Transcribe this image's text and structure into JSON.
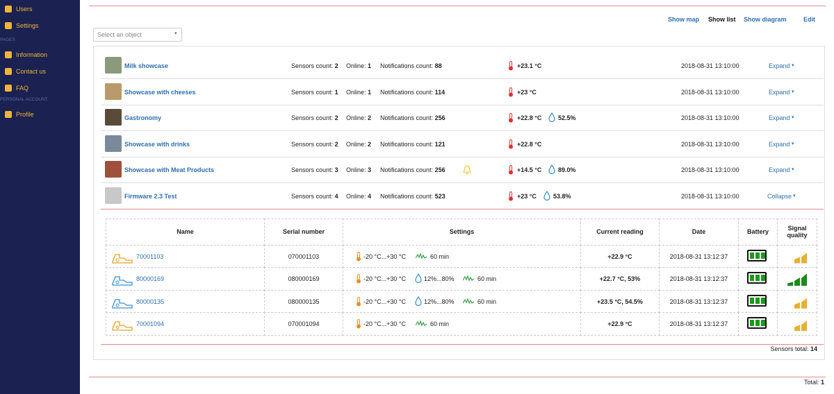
{
  "sidebar": {
    "top": [
      "Users",
      "Settings"
    ],
    "sections": [
      {
        "title": "PAGES",
        "items": [
          "Information",
          "Contact us",
          "FAQ"
        ]
      },
      {
        "title": "PERSONAL ACCOUNT",
        "items": [
          "Profile"
        ]
      }
    ]
  },
  "toolbar": {
    "links": [
      "Show map",
      "Show list",
      "Show diagram",
      "Edit"
    ],
    "active": 1
  },
  "select_placeholder": "Select an object",
  "objects": {
    "labels": {
      "sensors": "Sensors count:",
      "online": "Online:",
      "notifications": "Notifications count:"
    },
    "rows": [
      {
        "name": "Milk showcase",
        "sensors": 2,
        "online": 1,
        "notifications": 88,
        "temperature": "+23.1 °C",
        "datetime": "2018-08-31 13:10:00",
        "toggle": "Expand"
      },
      {
        "name": "Showcase with cheeses",
        "sensors": 1,
        "online": 1,
        "notifications": 114,
        "temperature": "+23 °C",
        "datetime": "2018-08-31 13:10:00",
        "toggle": "Expand"
      },
      {
        "name": "Gastronomy",
        "sensors": 2,
        "online": 2,
        "notifications": 256,
        "temperature": "+22.8 °C",
        "humidity": "52.5%",
        "datetime": "2018-08-31 13:10:00",
        "toggle": "Expand"
      },
      {
        "name": "Showcase with drinks",
        "sensors": 2,
        "online": 2,
        "notifications": 121,
        "temperature": "+22.8 °C",
        "datetime": "2018-08-31 13:10:00",
        "toggle": "Expand"
      },
      {
        "name": "Showcase with Meat Products",
        "sensors": 3,
        "online": 3,
        "notifications": 256,
        "alert": true,
        "temperature": "+14.5 °C",
        "humidity": "89.0%",
        "datetime": "2018-08-31 13:10:00",
        "toggle": "Expand"
      },
      {
        "name": "Firmware 2.3 Test",
        "sensors": 4,
        "online": 4,
        "notifications": 523,
        "temperature": "+23 °C",
        "humidity": "53.8%",
        "datetime": "2018-08-31 13:10:00",
        "toggle": "Collapse"
      }
    ]
  },
  "sensors_table": {
    "headers": [
      "Name",
      "Serial number",
      "Settings",
      "Current reading",
      "Date",
      "Battery",
      "Signal quality"
    ],
    "rows": [
      {
        "name": "70001103",
        "serial": "070001103",
        "temp_range": "-20 °C...+30 °C",
        "interval": "60 min",
        "reading": "+22.9 °C",
        "date": "2018-08-31 13:12:37",
        "battery": 3,
        "signal": 2
      },
      {
        "name": "80000169",
        "serial": "080000169",
        "temp_range": "-20 °C...+30 °C",
        "humidity_range": "12%...80%",
        "interval": "60 min",
        "reading": "+22.7 °C, 53%",
        "date": "2018-08-31 13:12:37",
        "battery": 3,
        "signal": 3
      },
      {
        "name": "80000135",
        "serial": "080000135",
        "temp_range": "-20 °C...+30 °C",
        "humidity_range": "12%...80%",
        "interval": "60 min",
        "reading": "+23.5 °C, 54.5%",
        "date": "2018-08-31 13:12:37",
        "battery": 3,
        "signal": 2
      },
      {
        "name": "70001094",
        "serial": "070001094",
        "temp_range": "-20 °C...+30 °C",
        "interval": "60 min",
        "reading": "+22.9 °C",
        "date": "2018-08-31 13:12:37",
        "battery": 3,
        "signal": 2
      }
    ]
  },
  "footer": {
    "sensors_total_label": "Sensors total:",
    "sensors_total": 14,
    "total_label": "Total:",
    "total": 1
  }
}
